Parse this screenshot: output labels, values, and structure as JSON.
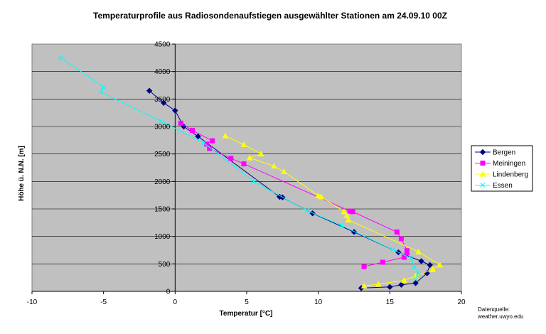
{
  "chart_data": {
    "type": "line",
    "title": "Temperaturprofile aus Radiosondenaufstiegen ausgewählter Stationen  am 24.09.10 00Z",
    "xlabel": "Temperatur [°C]",
    "ylabel": "Höhe ü. N.N. [m]",
    "xlim": [
      -10,
      20
    ],
    "ylim": [
      0,
      4500
    ],
    "xticks": [
      -10,
      -5,
      0,
      5,
      10,
      15,
      20
    ],
    "xtick_labels": [
      "-10",
      "-5",
      "0",
      "5",
      "10",
      "15",
      "20"
    ],
    "yticks": [
      0,
      500,
      1000,
      1500,
      2000,
      2500,
      3000,
      3500,
      4000,
      4500
    ],
    "ytick_labels": [
      "0",
      "500",
      "1000",
      "1500",
      "2000",
      "2500",
      "3000",
      "3500",
      "4000",
      "4500"
    ],
    "grid": "horizontal",
    "legend_position": "right",
    "plot_background": "#c0c0c0",
    "series": [
      {
        "name": "Bergen",
        "color": "#000080",
        "marker": "diamond",
        "points": [
          [
            13.0,
            60
          ],
          [
            15.0,
            80
          ],
          [
            15.8,
            120
          ],
          [
            16.8,
            150
          ],
          [
            17.6,
            330
          ],
          [
            17.8,
            480
          ],
          [
            17.2,
            550
          ],
          [
            15.6,
            710
          ],
          [
            12.5,
            1080
          ],
          [
            9.6,
            1420
          ],
          [
            7.5,
            1710
          ],
          [
            7.3,
            1720
          ],
          [
            1.6,
            2820
          ],
          [
            0.6,
            3000
          ],
          [
            0.0,
            3290
          ],
          [
            -0.8,
            3430
          ],
          [
            -1.8,
            3650
          ]
        ]
      },
      {
        "name": "Meiningen",
        "color": "#ff00ff",
        "marker": "square",
        "points": [
          [
            13.2,
            450
          ],
          [
            14.5,
            530
          ],
          [
            16.0,
            620
          ],
          [
            16.2,
            700
          ],
          [
            16.2,
            740
          ],
          [
            15.8,
            960
          ],
          [
            15.5,
            1080
          ],
          [
            12.4,
            1450
          ],
          [
            12.2,
            1460
          ],
          [
            4.8,
            2320
          ],
          [
            3.9,
            2420
          ],
          [
            2.4,
            2600
          ],
          [
            2.2,
            2680
          ],
          [
            2.6,
            2740
          ],
          [
            1.2,
            2930
          ],
          [
            0.4,
            3060
          ]
        ]
      },
      {
        "name": "Lindenberg",
        "color": "#ffff00",
        "marker": "triangle",
        "points": [
          [
            13.2,
            100
          ],
          [
            14.2,
            130
          ],
          [
            16.0,
            200
          ],
          [
            16.8,
            280
          ],
          [
            18.0,
            400
          ],
          [
            18.5,
            480
          ],
          [
            17.0,
            720
          ],
          [
            12.1,
            1300
          ],
          [
            12.0,
            1380
          ],
          [
            11.8,
            1450
          ],
          [
            10.2,
            1720
          ],
          [
            10.0,
            1740
          ],
          [
            7.6,
            2180
          ],
          [
            6.9,
            2280
          ],
          [
            5.2,
            2430
          ],
          [
            6.0,
            2500
          ],
          [
            4.8,
            2670
          ],
          [
            3.5,
            2830
          ]
        ]
      },
      {
        "name": "Essen",
        "color": "#00ffff",
        "marker": "x",
        "points": [
          [
            16.8,
            230
          ],
          [
            17.0,
            330
          ],
          [
            16.7,
            440
          ],
          [
            16.5,
            600
          ],
          [
            15.2,
            760
          ],
          [
            11.6,
            1200
          ],
          [
            9.2,
            1470
          ],
          [
            5.5,
            2000
          ],
          [
            2.0,
            2700
          ],
          [
            -1.0,
            3100
          ],
          [
            -5.2,
            3630
          ],
          [
            -5.0,
            3720
          ],
          [
            -8.0,
            4250
          ]
        ]
      }
    ]
  },
  "source_note": [
    "Datenquelle:",
    "weather.uwyo.edu"
  ]
}
